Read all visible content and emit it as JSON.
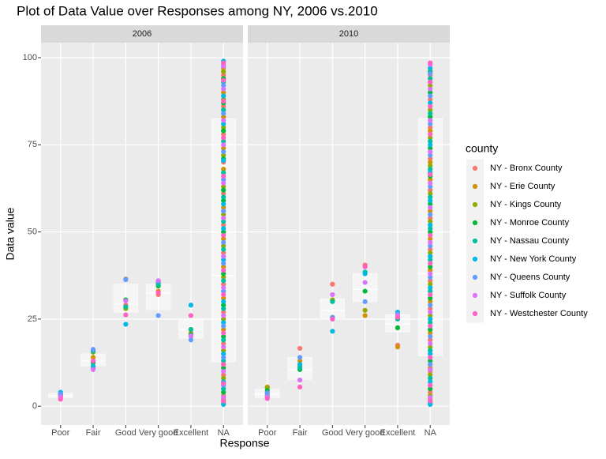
{
  "chart_data": {
    "type": "box",
    "title": "Plot of Data Value over Responses among NY, 2006 vs.2010",
    "x_label": "Response",
    "y_label": "Data value",
    "legend_title": "county",
    "categories": [
      "Poor",
      "Fair",
      "Good",
      "Very good",
      "Excellent",
      "NA"
    ],
    "ylim": [
      -5.4,
      104.3
    ],
    "yticks": [
      0,
      25,
      50,
      75,
      100
    ],
    "grid": true,
    "series": [
      {
        "name": "NY - Bronx County",
        "color": "#F8766D"
      },
      {
        "name": "NY - Erie County",
        "color": "#D39200"
      },
      {
        "name": "NY - Kings County",
        "color": "#93AA00"
      },
      {
        "name": "NY - Monroe County",
        "color": "#00BA38"
      },
      {
        "name": "NY - Nassau County",
        "color": "#00C19F"
      },
      {
        "name": "NY - New York County",
        "color": "#00B9E3"
      },
      {
        "name": "NY - Queens County",
        "color": "#619CFF"
      },
      {
        "name": "NY - Suffolk County",
        "color": "#DB72FB"
      },
      {
        "name": "NY - Westchester County",
        "color": "#FF61C3"
      }
    ],
    "panels": [
      {
        "name": "2006",
        "boxes": [
          {
            "q1": 2.5,
            "median": 3,
            "q3": 3.7
          },
          {
            "q1": 11.6,
            "median": 13,
            "q3": 15
          },
          {
            "q1": 27,
            "median": 29.3,
            "q3": 35
          },
          {
            "q1": 27.7,
            "median": 32.5,
            "q3": 35
          },
          {
            "q1": 19.5,
            "median": 22,
            "q3": 25
          },
          {
            "q1": 12.7,
            "median": 37.5,
            "q3": 82.5
          }
        ],
        "points": [
          [
            [
              2.5
            ],
            [
              11
            ],
            [
              29
            ],
            [
              32
            ],
            [
              20
            ],
            [
              3,
              9,
              18,
              27,
              35,
              44,
              52,
              61,
              70,
              78,
              86,
              95
            ]
          ],
          [
            [
              3.2
            ],
            [
              14
            ],
            [
              36.5
            ],
            [
              33
            ],
            [
              21
            ],
            [
              1,
              12,
              22,
              31,
              40,
              48,
              57,
              68,
              74,
              83,
              90,
              97
            ]
          ],
          [
            [
              3.5
            ],
            [
              15.5
            ],
            [
              28
            ],
            [
              35.5
            ],
            [
              22
            ],
            [
              2,
              8,
              16,
              25,
              37,
              46,
              55,
              63,
              72,
              80,
              88,
              96
            ]
          ],
          [
            [
              3
            ],
            [
              12.5
            ],
            [
              30.5
            ],
            [
              34.5
            ],
            [
              20.5
            ],
            [
              4,
              11,
              20,
              29,
              38,
              50,
              59,
              62,
              71,
              79,
              87,
              94
            ]
          ],
          [
            [
              3.4
            ],
            [
              15.8
            ],
            [
              28.5
            ],
            [
              35
            ],
            [
              22
            ],
            [
              5,
              13,
              19,
              28,
              36,
              45,
              53,
              60,
              67,
              76,
              85,
              93
            ]
          ],
          [
            [
              4
            ],
            [
              11.5
            ],
            [
              23.5
            ],
            [
              35.7
            ],
            [
              29
            ],
            [
              0.5,
              7,
              15,
              24,
              30,
              42,
              51,
              58,
              70.5,
              81,
              89,
              99
            ]
          ],
          [
            [
              3.6
            ],
            [
              16.3
            ],
            [
              36.3
            ],
            [
              26
            ],
            [
              19
            ],
            [
              6,
              14,
              23,
              33,
              41,
              47,
              56,
              65,
              73,
              84,
              92,
              98
            ]
          ],
          [
            [
              2.8
            ],
            [
              10.5
            ],
            [
              30.2
            ],
            [
              36
            ],
            [
              20.2
            ],
            [
              2.5,
              10,
              17,
              26,
              34,
              43,
              54,
              64,
              75,
              82,
              91,
              97.5
            ]
          ],
          [
            [
              2
            ],
            [
              13
            ],
            [
              26.2
            ],
            [
              32.6
            ],
            [
              26
            ],
            [
              1.5,
              6.5,
              12,
              21,
              32,
              39,
              49,
              66,
              77,
              87.5,
              93.5,
              98.5
            ]
          ]
        ]
      },
      {
        "name": "2010",
        "boxes": [
          {
            "q1": 2.5,
            "median": 3.5,
            "q3": 4.8
          },
          {
            "q1": 7.7,
            "median": 10.5,
            "q3": 14
          },
          {
            "q1": 25.4,
            "median": 27.5,
            "q3": 30.8
          },
          {
            "q1": 30,
            "median": 33.5,
            "q3": 38
          },
          {
            "q1": 21.3,
            "median": 23.5,
            "q3": 26.3
          },
          {
            "q1": 14.5,
            "median": 38,
            "q3": 82.5
          }
        ],
        "points": [
          [
            [
              3.5
            ],
            [
              16.6
            ],
            [
              35
            ],
            [
              40.5
            ],
            [
              17.5
            ],
            [
              4,
              10,
              19,
              28,
              36,
              45,
              54,
              62,
              71,
              80,
              88,
              95
            ]
          ],
          [
            [
              5.5
            ],
            [
              13
            ],
            [
              30.2
            ],
            [
              26
            ],
            [
              17
            ],
            [
              2,
              11,
              21,
              30,
              39,
              48,
              56,
              65,
              70,
              79,
              86,
              93
            ]
          ],
          [
            [
              5.3
            ],
            [
              11.5
            ],
            [
              30.5
            ],
            [
              27.5
            ],
            [
              22.5
            ],
            [
              3,
              9,
              17,
              26,
              35,
              44,
              53,
              61,
              69,
              77,
              85,
              92
            ]
          ],
          [
            [
              4.5
            ],
            [
              10.5
            ],
            [
              25.5
            ],
            [
              33
            ],
            [
              22.5
            ],
            [
              5,
              13,
              22,
              31,
              40,
              50,
              58,
              66,
              74,
              83,
              90,
              96
            ]
          ],
          [
            [
              3
            ],
            [
              11
            ],
            [
              30
            ],
            [
              38.5
            ],
            [
              25
            ],
            [
              1,
              8,
              16,
              24,
              33,
              42,
              51,
              60,
              68,
              76,
              84,
              94
            ]
          ],
          [
            [
              2.5
            ],
            [
              12
            ],
            [
              21.5
            ],
            [
              38
            ],
            [
              27
            ],
            [
              0.5,
              7,
              15,
              25,
              34,
              43,
              52,
              59,
              67,
              75,
              87,
              97
            ]
          ],
          [
            [
              3.8
            ],
            [
              14
            ],
            [
              25.5
            ],
            [
              30
            ],
            [
              26.5
            ],
            [
              6,
              12,
              20,
              29,
              37,
              46,
              55,
              63,
              72,
              81,
              89,
              95.5
            ]
          ],
          [
            [
              2.7
            ],
            [
              7.5
            ],
            [
              32
            ],
            [
              35.5
            ],
            [
              26
            ],
            [
              2.5,
              10.5,
              18,
              27,
              38,
              47,
              57,
              64,
              73,
              82,
              91,
              98
            ]
          ],
          [
            [
              2.2
            ],
            [
              5.5
            ],
            [
              25
            ],
            [
              40
            ],
            [
              25.5
            ],
            [
              1.5,
              6,
              14,
              23,
              32,
              41,
              49,
              66.5,
              78,
              86,
              93,
              98.5
            ]
          ]
        ]
      }
    ]
  }
}
